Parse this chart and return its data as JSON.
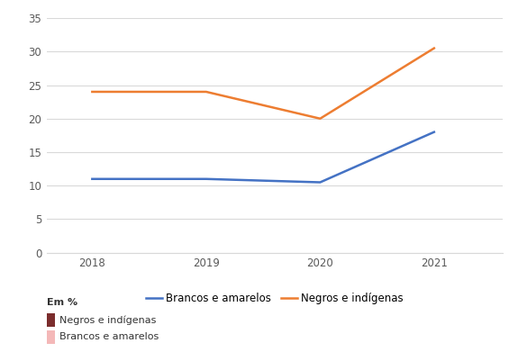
{
  "years": [
    2018,
    2019,
    2020,
    2021
  ],
  "brancos_amarelos": [
    11.0,
    11.0,
    10.5,
    18.0
  ],
  "negros_indigenas": [
    24.0,
    24.0,
    20.0,
    30.5
  ],
  "color_brancos": "#4472C4",
  "color_negros": "#ED7D31",
  "ylim": [
    0,
    35
  ],
  "yticks": [
    0,
    5,
    10,
    15,
    20,
    25,
    30,
    35
  ],
  "legend_line_brancos": "Brancos e amarelos",
  "legend_line_negros": "Negros e indígenas",
  "note_title": "Em %",
  "note_item1": "Negros e indígenas",
  "note_item2": "Brancos e amarelos",
  "note_color1": "#7B2D2D",
  "note_color2": "#F4B8B8",
  "bg_color": "#FFFFFF",
  "grid_color": "#D9D9D9",
  "linewidth": 1.8
}
